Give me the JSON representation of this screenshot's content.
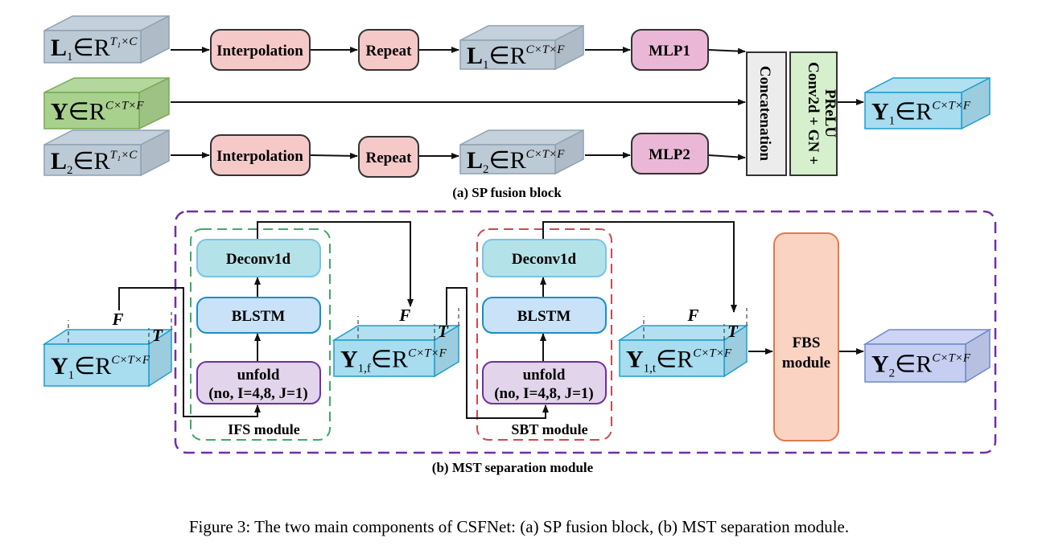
{
  "part_a": {
    "caption": "(a)  SP fusion block",
    "inputs": [
      {
        "main": "L",
        "sub": "1",
        "rel": "∈R",
        "sup": "T₁×C"
      },
      {
        "main": "Y",
        "sub": "",
        "rel": "∈R",
        "sup": "C×T×F"
      },
      {
        "main": "L",
        "sub": "2",
        "rel": "∈R",
        "sup": "T₁×C"
      }
    ],
    "repeated": [
      {
        "main": "L",
        "sub": "1",
        "rel": "∈R",
        "sup": "C×T×F"
      },
      {
        "main": "L",
        "sub": "2",
        "rel": "∈R",
        "sup": "C×T×F"
      }
    ],
    "interpolation": "Interpolation",
    "repeat": "Repeat",
    "mlp1": "MLP1",
    "mlp2": "MLP2",
    "concatenation": "Concatenation",
    "conv_line1": "Conv2d + GN +",
    "conv_line2": "PReLU",
    "output": {
      "main": "Y",
      "sub": "1",
      "rel": "∈R",
      "sup": "C×T×F"
    }
  },
  "part_b": {
    "caption": "(b)  MST separation module",
    "input": {
      "main": "Y",
      "sub": "1",
      "rel": "∈R",
      "sup": "C×T×F"
    },
    "mid": {
      "main": "Y",
      "sub": "1,f",
      "rel": "∈R",
      "sup": "C×T×F"
    },
    "mid2": {
      "main": "Y",
      "sub": "1,t",
      "rel": "∈R",
      "sup": "C×T×F"
    },
    "output": {
      "main": "Y",
      "sub": "2",
      "rel": "∈R",
      "sup": "C×T×F"
    },
    "axis_f": "F",
    "axis_t": "T",
    "deconv": "Deconv1d",
    "blstm": "BLSTM",
    "unfold_line1": "unfold",
    "unfold_line2": "(no, I=4,8, J=1)",
    "ifs": "IFS module",
    "sbt": "SBT module",
    "fbs_line1": "FBS",
    "fbs_line2": "module"
  },
  "figure_caption": "Figure 3: The two main components of CSFNet: (a) SP fusion block, (b) MST separation module.",
  "colors": {
    "gray_tensor": "#bccad6",
    "green_tensor": "#a9d18e",
    "blue_tensor": "#a8dcef",
    "lavender_tensor": "#c6cef2",
    "pink_block": "#f6c9c9",
    "mlp_block": "#eab8d6",
    "deconv_block": "#b3e3e8",
    "blstm_block": "#c9e2f7",
    "unfold_block": "#e2d4ea",
    "fbs_block": "#fbd3c3",
    "mst_border": "#7030a0",
    "ifs_border": "#3caa6a",
    "sbt_border": "#d04848"
  }
}
